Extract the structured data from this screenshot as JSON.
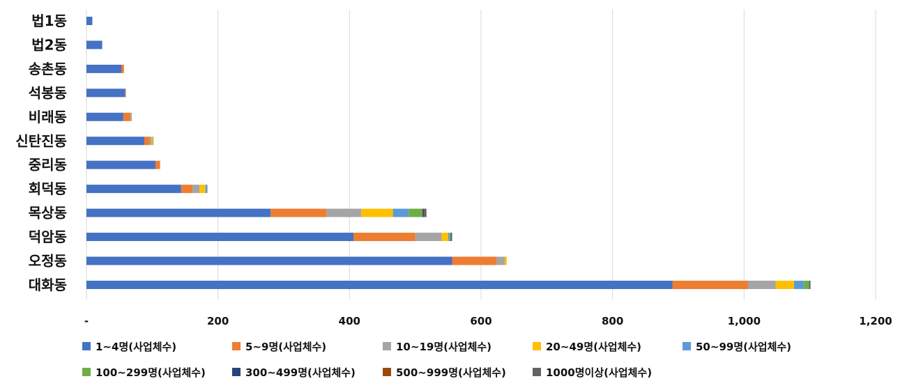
{
  "chart_data": {
    "type": "bar",
    "orientation": "horizontal",
    "stacked": true,
    "title": "",
    "xlabel": "",
    "ylabel": "",
    "xlim": [
      0,
      1200
    ],
    "x_ticks": [
      {
        "value": 0,
        "label": "-"
      },
      {
        "value": 200,
        "label": "200"
      },
      {
        "value": 400,
        "label": "400"
      },
      {
        "value": 600,
        "label": "600"
      },
      {
        "value": 800,
        "label": "800"
      },
      {
        "value": 1000,
        "label": "1,000"
      },
      {
        "value": 1200,
        "label": "1,200"
      }
    ],
    "grid": "vertical",
    "legend_position": "bottom",
    "categories": [
      "법1동",
      "법2동",
      "송촌동",
      "석봉동",
      "비래동",
      "신탄진동",
      "중리동",
      "회덕동",
      "목상동",
      "덕암동",
      "오정동",
      "대화동"
    ],
    "series": [
      {
        "name": "1~4명(사업체수)",
        "color": "#4472c4",
        "values": [
          9,
          24,
          53,
          59,
          56,
          88,
          105,
          144,
          280,
          406,
          556,
          891
        ]
      },
      {
        "name": "5~9명(사업체수)",
        "color": "#ed7d31",
        "values": [
          0,
          0,
          4,
          1,
          11,
          8,
          7,
          17,
          85,
          94,
          68,
          115
        ]
      },
      {
        "name": "10~19명(사업체수)",
        "color": "#a5a5a5",
        "values": [
          0,
          0,
          0,
          0,
          2,
          3,
          0,
          11,
          53,
          40,
          12,
          42
        ]
      },
      {
        "name": "20~49명(사업체수)",
        "color": "#ffc000",
        "values": [
          0,
          0,
          0,
          0,
          0,
          2,
          0,
          9,
          48,
          10,
          3,
          28
        ]
      },
      {
        "name": "50~99명(사업체수)",
        "color": "#5b9bd5",
        "values": [
          0,
          0,
          0,
          0,
          0,
          0,
          0,
          3,
          24,
          2,
          0,
          15
        ]
      },
      {
        "name": "100~299명(사업체수)",
        "color": "#70ad47",
        "values": [
          0,
          0,
          0,
          0,
          0,
          1,
          0,
          0,
          21,
          2,
          0,
          8
        ]
      },
      {
        "name": "300~499명(사업체수)",
        "color": "#264478",
        "values": [
          0,
          0,
          0,
          0,
          0,
          0,
          0,
          0,
          2,
          1,
          0,
          1
        ]
      },
      {
        "name": "500~999명(사업체수)",
        "color": "#9e480e",
        "values": [
          0,
          0,
          0,
          0,
          0,
          0,
          0,
          0,
          1,
          0,
          0,
          0
        ]
      },
      {
        "name": "1000명이상(사업체수)",
        "color": "#636363",
        "values": [
          0,
          0,
          0,
          0,
          0,
          0,
          0,
          0,
          3,
          1,
          0,
          1
        ]
      }
    ]
  }
}
